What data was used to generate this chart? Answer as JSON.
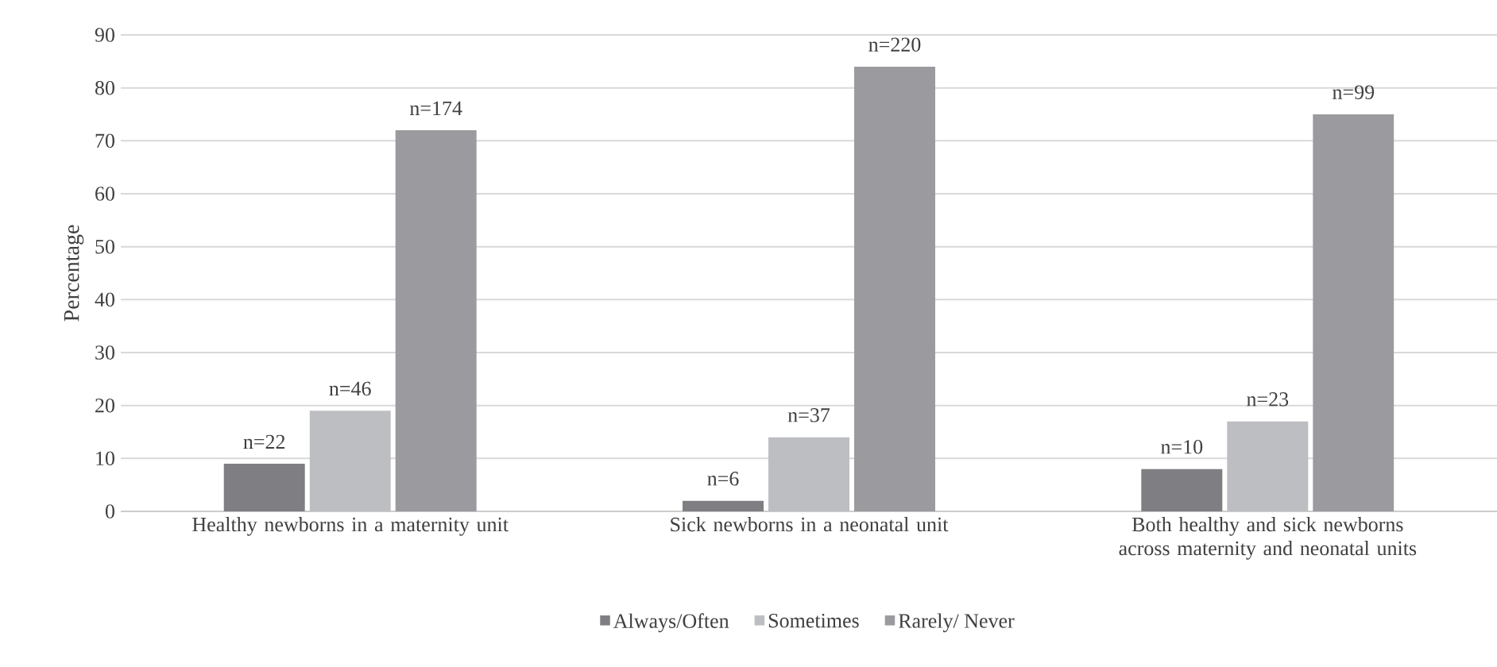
{
  "chart_data": {
    "type": "bar",
    "ylabel": "Percentage",
    "categories": [
      "Healthy newborns in a maternity unit",
      "Sick newborns in a neonatal unit",
      "Both healthy and sick newborns across maternity and neonatal units"
    ],
    "series": [
      {
        "name": "Always/Often",
        "color": "#7f7f83",
        "values": [
          9,
          2,
          8
        ]
      },
      {
        "name": "Sometimes",
        "color": "#bdbec2",
        "values": [
          19,
          14,
          17
        ]
      },
      {
        "name": "Rarely/ Never",
        "color": "#9b9b9f",
        "values": [
          72,
          84,
          75
        ]
      }
    ],
    "annotations": [
      "n=22",
      "n=46",
      "n=174",
      "n=6",
      "n=37",
      "n=220",
      "n=10",
      "n=23",
      "n=99"
    ],
    "ylim": [
      0,
      90
    ],
    "yticks": [
      0,
      10,
      20,
      30,
      40,
      50,
      60,
      70,
      80,
      90
    ],
    "grid": "y",
    "legend": "bottom"
  }
}
